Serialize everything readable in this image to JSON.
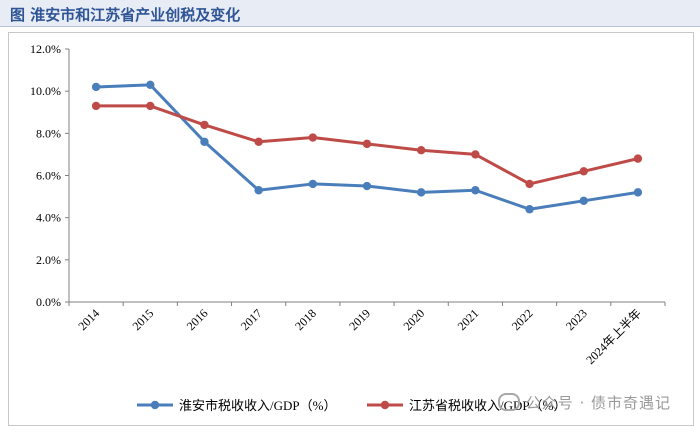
{
  "header": {
    "title": "图  淮安市和江苏省产业创税及变化"
  },
  "chart_data": {
    "type": "line",
    "title": "",
    "xlabel": "",
    "ylabel": "",
    "categories": [
      "2014",
      "2015",
      "2016",
      "2017",
      "2018",
      "2019",
      "2020",
      "2021",
      "2022",
      "2023",
      "2024年上半年"
    ],
    "yticks": [
      "0.0%",
      "2.0%",
      "4.0%",
      "6.0%",
      "8.0%",
      "10.0%",
      "12.0%"
    ],
    "ylim": [
      0,
      12
    ],
    "grid": false,
    "legend_position": "bottom",
    "series": [
      {
        "name": "淮安市税收收入/GDP（%）",
        "color": "#4a7ebb",
        "values": [
          10.2,
          10.3,
          7.6,
          5.3,
          5.6,
          5.5,
          5.2,
          5.3,
          4.4,
          4.8,
          5.2
        ]
      },
      {
        "name": "江苏省税收收入/GDP（%）",
        "color": "#be4b48",
        "values": [
          9.3,
          9.3,
          8.4,
          7.6,
          7.8,
          7.5,
          7.2,
          7.0,
          5.6,
          6.2,
          6.8
        ]
      }
    ]
  },
  "watermark": {
    "text": "公众号 · 债市奇遇记"
  }
}
